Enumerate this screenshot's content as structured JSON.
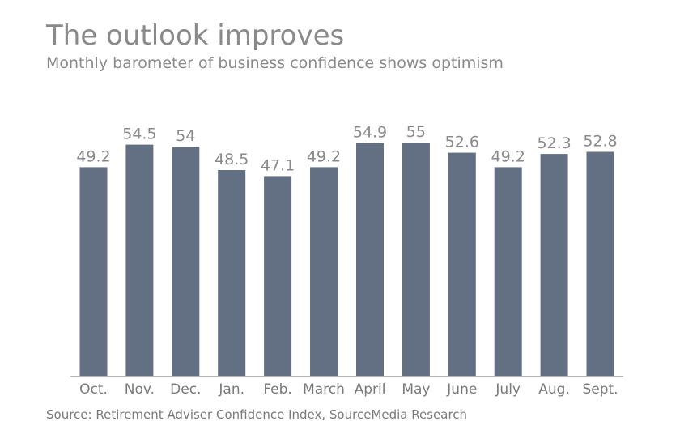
{
  "header": {
    "title": "The outlook improves",
    "subtitle": "Monthly barometer of business confidence shows optimism"
  },
  "footer": {
    "source": "Source: Retirement Adviser Confidence Index, SourceMedia Research"
  },
  "colors": {
    "bar": "#637083",
    "axis": "#b5b5b5",
    "text": "#8a8a8a"
  },
  "chart_data": {
    "type": "bar",
    "title": "The outlook improves",
    "subtitle": "Monthly barometer of business confidence shows optimism",
    "xlabel": "",
    "ylabel": "",
    "categories": [
      "Oct.",
      "Nov.",
      "Dec.",
      "Jan.",
      "Feb.",
      "March",
      "April",
      "May",
      "June",
      "July",
      "Aug.",
      "Sept."
    ],
    "values": [
      49.2,
      54.5,
      54,
      48.5,
      47.1,
      49.2,
      54.9,
      55,
      52.6,
      49.2,
      52.3,
      52.8
    ],
    "value_labels": [
      "49.2",
      "54.5",
      "54",
      "48.5",
      "47.1",
      "49.2",
      "54.9",
      "55",
      "52.6",
      "49.2",
      "52.3",
      "52.8"
    ],
    "ylim": [
      0,
      55
    ],
    "grid": false,
    "legend": "none"
  }
}
